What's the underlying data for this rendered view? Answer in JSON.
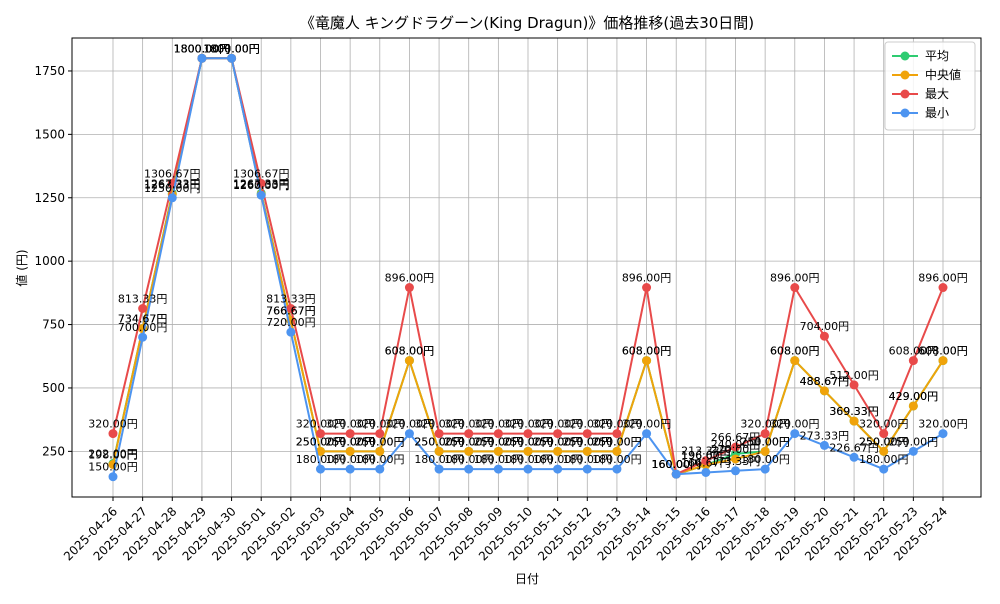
{
  "chart_data": {
    "type": "line",
    "title": "《竜魔人 キングドラグーン(King Dragun)》価格推移(過去30日間)",
    "xlabel": "日付",
    "ylabel": "値 (円)",
    "ylim": [
      70,
      1880
    ],
    "yticks": [
      250,
      500,
      750,
      1000,
      1250,
      1500,
      1750
    ],
    "grid": true,
    "legend_position": "top-right",
    "value_suffix": "円",
    "categories": [
      "2025-04-26",
      "2025-04-27",
      "2025-04-28",
      "2025-04-29",
      "2025-04-30",
      "2025-05-01",
      "2025-05-02",
      "2025-05-03",
      "2025-05-04",
      "2025-05-05",
      "2025-05-06",
      "2025-05-07",
      "2025-05-08",
      "2025-05-09",
      "2025-05-10",
      "2025-05-11",
      "2025-05-12",
      "2025-05-13",
      "2025-05-14",
      "2025-05-15",
      "2025-05-16",
      "2025-05-17",
      "2025-05-18",
      "2025-05-19",
      "2025-05-20",
      "2025-05-21",
      "2025-05-22",
      "2025-05-23",
      "2025-05-24"
    ],
    "series": [
      {
        "name": "平均",
        "color": "#2ecc71",
        "values": [
          202.0,
          734.67,
          1267.33,
          1800.0,
          1800.0,
          1267.33,
          766.67,
          250.0,
          250.0,
          250.0,
          608.0,
          250.0,
          250.0,
          250.0,
          250.0,
          250.0,
          250.0,
          250.0,
          608.0,
          160.0,
          196.0,
          240.0,
          250.0,
          608.0,
          488.67,
          369.33,
          250.0,
          429.0,
          608.0
        ]
      },
      {
        "name": "中央値",
        "color": "#f0a30a",
        "values": [
          198.0,
          734.67,
          1263.33,
          1800.0,
          1800.0,
          1263.33,
          766.67,
          250.0,
          250.0,
          250.0,
          608.0,
          250.0,
          250.0,
          250.0,
          250.0,
          250.0,
          250.0,
          250.0,
          608.0,
          160.0,
          196.67,
          220.0,
          250.0,
          608.0,
          488.67,
          369.33,
          250.0,
          429.0,
          608.0
        ]
      },
      {
        "name": "最大",
        "color": "#e84a4a",
        "values": [
          320.0,
          813.33,
          1306.67,
          1800.0,
          1800.0,
          1306.67,
          813.33,
          320.0,
          320.0,
          320.0,
          896.0,
          320.0,
          320.0,
          320.0,
          320.0,
          320.0,
          320.0,
          320.0,
          896.0,
          160.0,
          213.33,
          266.67,
          320.0,
          896.0,
          704.0,
          512.0,
          320.0,
          608.0,
          896.0
        ]
      },
      {
        "name": "最小",
        "color": "#4d94f0",
        "values": [
          150.0,
          700.0,
          1250.0,
          1800.0,
          1800.0,
          1260.0,
          720.0,
          180.0,
          180.0,
          180.0,
          320.0,
          180.0,
          180.0,
          180.0,
          180.0,
          180.0,
          180.0,
          180.0,
          320.0,
          160.0,
          166.67,
          173.33,
          180.0,
          320.0,
          273.33,
          226.67,
          180.0,
          250.0,
          320.0
        ]
      }
    ]
  }
}
